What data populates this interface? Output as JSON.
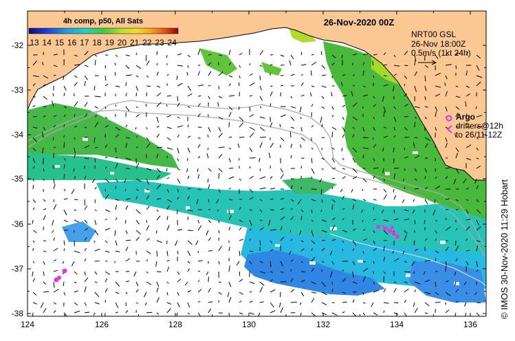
{
  "map": {
    "date_title": "26-Nov-2020 00Z",
    "product": {
      "line1": "NRT00 GSL",
      "line2": "26-Nov 18:00Z",
      "line3": "0.5m/s (1kt 24h)"
    },
    "argo": {
      "label": "Argo",
      "drifters_line1": "drifters@12h",
      "drifters_line2": "to 26/11-12Z"
    },
    "credit": "© IMOS 30-Nov-2020 11:29 Hobart",
    "colorbar": {
      "title": "4h comp, p50, All Sats",
      "ticks": [
        "13",
        "14",
        "15",
        "16",
        "17",
        "18",
        "19",
        "20",
        "21",
        "22",
        "23",
        "24"
      ]
    },
    "axes": {
      "x_ticks": [
        "124",
        "126",
        "128",
        "130",
        "132",
        "134",
        "136"
      ],
      "y_ticks": [
        "-32",
        "-33",
        "-34",
        "-35",
        "-36",
        "-37",
        "-38"
      ]
    },
    "colors": {
      "land": "#fbc893",
      "sst_cool": "#3a8ee8",
      "sst_mid": "#2ec4b0",
      "sst_warm": "#3fba3a",
      "argo": "#e633e6"
    }
  }
}
